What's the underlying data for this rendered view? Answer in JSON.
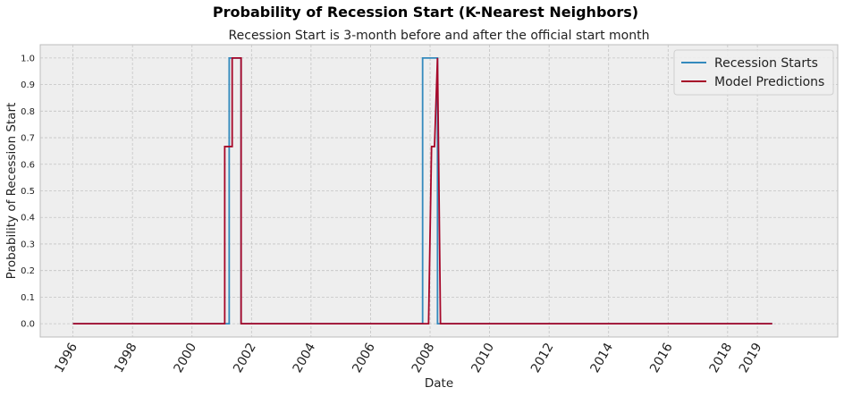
{
  "figure": {
    "suptitle": "Probability of Recession Start (K-Nearest Neighbors)"
  },
  "chart_data": {
    "type": "line",
    "title": "Recession Start is 3-month before and after the official start month",
    "xlabel": "Date",
    "ylabel": "Probability of Recession Start",
    "xlim": [
      1994.9,
      2021.7
    ],
    "ylim": [
      -0.05,
      1.05
    ],
    "x_ticks": [
      {
        "value": 1996,
        "label": "1996"
      },
      {
        "value": 1998,
        "label": "1998"
      },
      {
        "value": 2000,
        "label": "2000"
      },
      {
        "value": 2002,
        "label": "2002"
      },
      {
        "value": 2004,
        "label": "2004"
      },
      {
        "value": 2006,
        "label": "2006"
      },
      {
        "value": 2008,
        "label": "2008"
      },
      {
        "value": 2010,
        "label": "2010"
      },
      {
        "value": 2012,
        "label": "2012"
      },
      {
        "value": 2014,
        "label": "2014"
      },
      {
        "value": 2016,
        "label": "2016"
      },
      {
        "value": 2018,
        "label": "2018"
      },
      {
        "value": 2019,
        "label": "2019"
      }
    ],
    "y_ticks": [
      0.0,
      0.1,
      0.2,
      0.3,
      0.4,
      0.5,
      0.6,
      0.7,
      0.8,
      0.9,
      1.0
    ],
    "y_tick_labels": [
      "0.0",
      "0.1",
      "0.2",
      "0.3",
      "0.4",
      "0.5",
      "0.6",
      "0.7",
      "0.8",
      "0.9",
      "1.0"
    ],
    "grid": true,
    "legend": "top-right",
    "x_tick_rotation_deg": 60,
    "colors": {
      "recession": "#348abd",
      "model": "#a60628",
      "background": "#eeeeee",
      "grid": "#c4c4c4"
    },
    "series": [
      {
        "name": "Recession Starts",
        "x": [
          1996.0,
          2001.0,
          2001.0,
          2001.1,
          2001.1,
          2001.25,
          2001.25,
          2001.55,
          2001.55,
          2001.65,
          2001.65,
          2002.0,
          2002.0,
          2007.75,
          2007.75,
          2008.0,
          2008.0,
          2008.15,
          2008.15,
          2008.2,
          2008.2,
          2008.25,
          2008.25,
          2008.35,
          2008.35,
          2019.5
        ],
        "y": [
          0,
          0,
          0,
          0,
          0,
          0,
          1,
          1,
          1,
          1,
          0,
          0,
          0,
          0,
          1,
          1,
          1,
          1,
          1,
          1,
          1,
          1,
          0,
          0,
          0,
          0
        ]
      },
      {
        "name": "Model Predictions",
        "x": [
          1996.0,
          2000.85,
          2000.85,
          2001.1,
          2001.1,
          2001.25,
          2001.25,
          2001.35,
          2001.35,
          2001.65,
          2001.65,
          2001.75,
          2001.75,
          2007.95,
          2008.05,
          2008.05,
          2008.15,
          2008.15,
          2008.25,
          2008.35,
          2008.35,
          2019.5
        ],
        "y": [
          0,
          0,
          0,
          0,
          0.6667,
          0.6667,
          0.6667,
          0.6667,
          1,
          1,
          0,
          0,
          0,
          0,
          0.6667,
          0.6667,
          0.6667,
          0.6667,
          1,
          0,
          0,
          0
        ]
      }
    ]
  }
}
